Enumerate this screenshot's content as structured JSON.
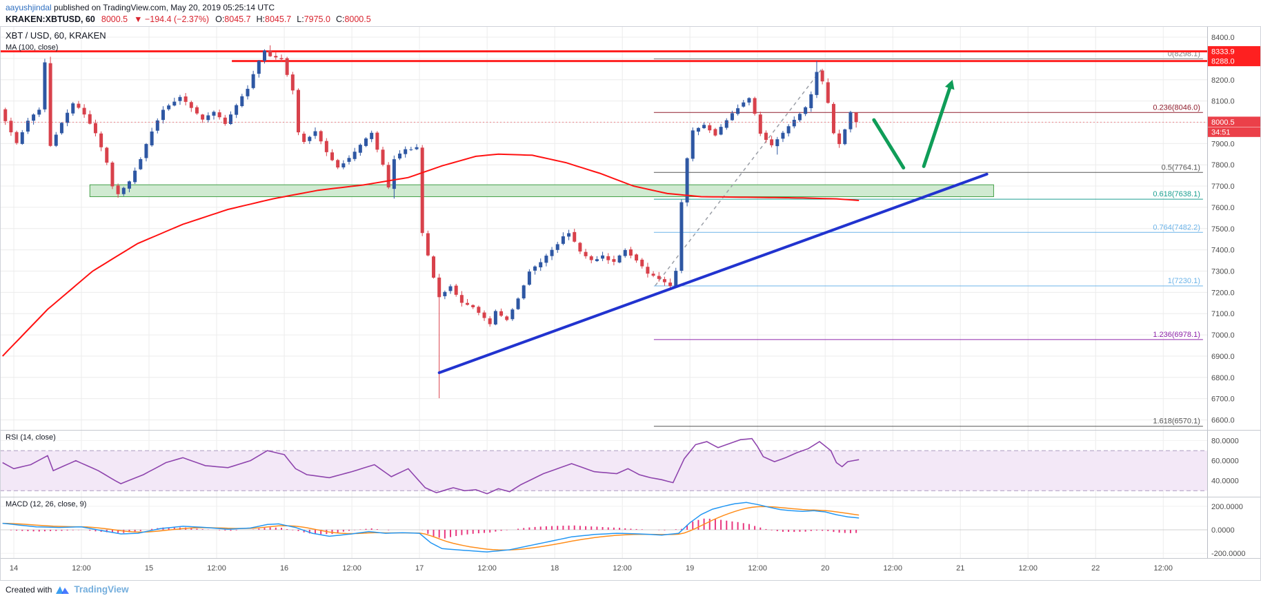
{
  "header": {
    "author": "aayushjindal",
    "published": " published on TradingView.com, May 20, 2019 05:25:14 UTC",
    "symbol": "KRAKEN:XBTUSD, 60",
    "last_price": "8000.5",
    "change": "▼ −194.4 (−2.37%)",
    "ohlc": [
      [
        "O:",
        "8045.7"
      ],
      [
        "H:",
        "8045.7"
      ],
      [
        "L:",
        "7975.0"
      ],
      [
        "C:",
        "8000.5"
      ]
    ]
  },
  "footer": {
    "created_with": "Created with",
    "brand": "TradingView"
  },
  "chart_data": {
    "type": "candlestick",
    "title": "XBT / USD, 60, KRAKEN",
    "overlays": {
      "ma_label": "MA (100, close)"
    },
    "x_axis": {
      "note": "t = hours since May 14 2019 00:00 UTC",
      "start_t": -2.45,
      "end_t": 211.8,
      "labels": [
        {
          "t": 0,
          "label": "14"
        },
        {
          "t": 12,
          "label": "12:00"
        },
        {
          "t": 24,
          "label": "15"
        },
        {
          "t": 36,
          "label": "12:00"
        },
        {
          "t": 48,
          "label": "16"
        },
        {
          "t": 60,
          "label": "12:00"
        },
        {
          "t": 72,
          "label": "17"
        },
        {
          "t": 84,
          "label": "12:00"
        },
        {
          "t": 96,
          "label": "18"
        },
        {
          "t": 108,
          "label": "12:00"
        },
        {
          "t": 120,
          "label": "19"
        },
        {
          "t": 132,
          "label": "12:00"
        },
        {
          "t": 144,
          "label": "20"
        },
        {
          "t": 156,
          "label": "12:00"
        },
        {
          "t": 168,
          "label": "21"
        },
        {
          "t": 180,
          "label": "12:00"
        },
        {
          "t": 192,
          "label": "22"
        },
        {
          "t": 204,
          "label": "12:00"
        }
      ]
    },
    "y_axis": {
      "min_price": 6553,
      "max_price": 8452,
      "tick_min": 6600,
      "tick_max": 8400,
      "tick_step": 100,
      "decimals": 1,
      "hidden_ticks": [
        8300,
        8000
      ]
    },
    "candle_colors": {
      "up": "#2e57a3",
      "down": "#d8414b"
    },
    "price_path": [
      [
        -2,
        8060
      ],
      [
        0,
        7950
      ],
      [
        1,
        7900
      ],
      [
        3,
        8010
      ],
      [
        5,
        8060
      ],
      [
        6,
        8280
      ],
      [
        7,
        7890
      ],
      [
        9,
        8000
      ],
      [
        11,
        8090
      ],
      [
        13,
        8040
      ],
      [
        15,
        7950
      ],
      [
        17,
        7810
      ],
      [
        18,
        7700
      ],
      [
        19,
        7660
      ],
      [
        21,
        7720
      ],
      [
        23,
        7830
      ],
      [
        25,
        7960
      ],
      [
        27,
        8060
      ],
      [
        30,
        8120
      ],
      [
        32,
        8070
      ],
      [
        34,
        8010
      ],
      [
        36,
        8050
      ],
      [
        38,
        7990
      ],
      [
        40,
        8080
      ],
      [
        42,
        8160
      ],
      [
        44,
        8290
      ],
      [
        45,
        8340
      ],
      [
        46,
        8310
      ],
      [
        48,
        8300
      ],
      [
        50,
        8150
      ],
      [
        51,
        7950
      ],
      [
        52,
        7910
      ],
      [
        54,
        7960
      ],
      [
        56,
        7860
      ],
      [
        58,
        7790
      ],
      [
        60,
        7830
      ],
      [
        62,
        7890
      ],
      [
        64,
        7950
      ],
      [
        66,
        7800
      ],
      [
        67,
        7690
      ],
      [
        68,
        7830
      ],
      [
        70,
        7870
      ],
      [
        72,
        7880
      ],
      [
        73,
        7480
      ],
      [
        74,
        7370
      ],
      [
        75,
        7270
      ],
      [
        76,
        7180
      ],
      [
        78,
        7230
      ],
      [
        80,
        7150
      ],
      [
        82,
        7130
      ],
      [
        84,
        7080
      ],
      [
        85,
        7050
      ],
      [
        86,
        7110
      ],
      [
        88,
        7070
      ],
      [
        90,
        7170
      ],
      [
        92,
        7300
      ],
      [
        94,
        7340
      ],
      [
        96,
        7400
      ],
      [
        98,
        7460
      ],
      [
        99,
        7480
      ],
      [
        101,
        7390
      ],
      [
        103,
        7350
      ],
      [
        105,
        7370
      ],
      [
        107,
        7340
      ],
      [
        109,
        7400
      ],
      [
        111,
        7350
      ],
      [
        113,
        7290
      ],
      [
        115,
        7260
      ],
      [
        117,
        7230
      ],
      [
        118,
        7300
      ],
      [
        119,
        7620
      ],
      [
        120,
        7830
      ],
      [
        121,
        7960
      ],
      [
        123,
        7990
      ],
      [
        125,
        7940
      ],
      [
        127,
        8010
      ],
      [
        129,
        8070
      ],
      [
        131,
        8110
      ],
      [
        132,
        8040
      ],
      [
        133,
        7950
      ],
      [
        135,
        7890
      ],
      [
        137,
        7950
      ],
      [
        139,
        8010
      ],
      [
        141,
        8070
      ],
      [
        142,
        8130
      ],
      [
        143,
        8240
      ],
      [
        144,
        8190
      ],
      [
        145,
        8090
      ],
      [
        146,
        7950
      ],
      [
        147,
        7900
      ],
      [
        148,
        7970
      ],
      [
        149,
        8046
      ],
      [
        150,
        8000.5
      ]
    ],
    "wick_overrides": [
      [
        6,
        8308,
        null
      ],
      [
        45,
        8362,
        null
      ],
      [
        51,
        null,
        7898
      ],
      [
        67,
        null,
        7641
      ],
      [
        75,
        null,
        6702
      ],
      [
        135,
        null,
        7848
      ],
      [
        142,
        8288,
        null
      ],
      [
        149,
        8045.7,
        7975.0
      ]
    ],
    "ma100": {
      "color": "#ff1111",
      "path": [
        [
          -2,
          6900
        ],
        [
          6,
          7120
        ],
        [
          14,
          7300
        ],
        [
          22,
          7430
        ],
        [
          30,
          7520
        ],
        [
          38,
          7590
        ],
        [
          46,
          7640
        ],
        [
          54,
          7680
        ],
        [
          62,
          7705
        ],
        [
          70,
          7740
        ],
        [
          76,
          7795
        ],
        [
          82,
          7840
        ],
        [
          86,
          7850
        ],
        [
          92,
          7845
        ],
        [
          98,
          7810
        ],
        [
          104,
          7760
        ],
        [
          110,
          7700
        ],
        [
          116,
          7665
        ],
        [
          122,
          7650
        ],
        [
          128,
          7648
        ],
        [
          134,
          7646
        ],
        [
          140,
          7644
        ],
        [
          146,
          7640
        ],
        [
          150,
          7632
        ]
      ]
    },
    "fib": {
      "start_t": 113.6,
      "end_t": 211.05,
      "levels": [
        {
          "label": "0(8298.1)",
          "price": 8298.1,
          "color": "#808080"
        },
        {
          "label": "0.236(8046.0)",
          "price": 8046.0,
          "color": "#8f1d2c"
        },
        {
          "label": "0.5(7764.1)",
          "price": 7764.1,
          "color": "#555555"
        },
        {
          "label": "0.618(7638.1)",
          "price": 7638.1,
          "color": "#1a9e8f"
        },
        {
          "label": "0.764(7482.2)",
          "price": 7482.2,
          "color": "#6bb3e8"
        },
        {
          "label": "1(7230.1)",
          "price": 7230.1,
          "color": "#6bb3e8"
        },
        {
          "label": "1.236(6978.1)",
          "price": 6978.1,
          "color": "#8e24aa"
        },
        {
          "label": "1.618(6570.1)",
          "price": 6570.1,
          "color": "#555555"
        }
      ]
    },
    "red_lines": [
      {
        "price": 8333.9,
        "t1": -2.45,
        "t2": 211.8,
        "label": "8333.9"
      },
      {
        "price": 8288.0,
        "t1": 38.7,
        "t2": 211.8,
        "label": "8288.0"
      }
    ],
    "red_line_color": "#fe2020",
    "green_zone": {
      "t1": 13.5,
      "t2": 173.9,
      "price_top": 7706,
      "price_bottom": 7650,
      "fill": "#c8e6c9",
      "stroke": "#43a047"
    },
    "trendline": {
      "t1": 75.5,
      "price1": 6822,
      "t2": 172.7,
      "price2": 7756,
      "color": "#2133cf",
      "width": 4
    },
    "dashed_line": {
      "t1": 113.85,
      "price1": 7232,
      "t2": 143.5,
      "price2": 8255,
      "color": "#9a9ea6"
    },
    "arrow": {
      "color": "#0f9d58",
      "width": 5,
      "head_size": 13,
      "strokes": [
        {
          "t1": 152.65,
          "price1": 8011,
          "t2": 157.9,
          "price2": 7786
        },
        {
          "t1": 161.5,
          "price1": 7793,
          "t2": 166.1,
          "price2": 8160
        }
      ]
    },
    "last_price_marker": {
      "value": "8000.5",
      "price": 8000.5,
      "countdown": "34:51",
      "badge_color": "#eb4049"
    },
    "rsi": {
      "label": "RSI (14, close)",
      "color": "#8e44ad",
      "range": [
        24,
        90
      ],
      "band": [
        30,
        70
      ],
      "band_fill": "#f3e8f7",
      "band_edge_color": "#ab9ac0",
      "axis_ticks": [
        [
          80,
          "80.0000"
        ],
        [
          60,
          "60.0000"
        ],
        [
          40,
          "40.0000"
        ]
      ],
      "path": [
        [
          -2,
          58
        ],
        [
          0,
          52
        ],
        [
          3,
          56
        ],
        [
          6,
          65
        ],
        [
          7,
          50
        ],
        [
          9,
          55
        ],
        [
          11,
          60
        ],
        [
          15,
          50
        ],
        [
          18,
          40
        ],
        [
          19,
          37
        ],
        [
          23,
          46
        ],
        [
          27,
          58
        ],
        [
          30,
          63
        ],
        [
          34,
          55
        ],
        [
          38,
          53
        ],
        [
          42,
          60
        ],
        [
          45,
          70
        ],
        [
          48,
          66
        ],
        [
          50,
          52
        ],
        [
          52,
          46
        ],
        [
          56,
          43
        ],
        [
          60,
          49
        ],
        [
          64,
          56
        ],
        [
          67,
          44
        ],
        [
          70,
          52
        ],
        [
          73,
          33
        ],
        [
          75,
          28
        ],
        [
          78,
          33
        ],
        [
          80,
          30
        ],
        [
          82,
          31
        ],
        [
          84,
          27
        ],
        [
          86,
          32
        ],
        [
          88,
          29
        ],
        [
          90,
          36
        ],
        [
          94,
          47
        ],
        [
          98,
          55
        ],
        [
          99,
          57
        ],
        [
          103,
          49
        ],
        [
          107,
          47
        ],
        [
          109,
          52
        ],
        [
          111,
          46
        ],
        [
          113,
          43
        ],
        [
          115,
          41
        ],
        [
          117,
          38
        ],
        [
          119,
          62
        ],
        [
          121,
          76
        ],
        [
          123,
          79
        ],
        [
          125,
          73
        ],
        [
          127,
          77
        ],
        [
          129,
          81
        ],
        [
          131,
          82
        ],
        [
          132,
          74
        ],
        [
          133,
          64
        ],
        [
          135,
          59
        ],
        [
          137,
          63
        ],
        [
          139,
          68
        ],
        [
          141,
          72
        ],
        [
          143,
          79
        ],
        [
          145,
          70
        ],
        [
          146,
          58
        ],
        [
          147,
          54
        ],
        [
          148,
          59
        ],
        [
          150,
          61
        ]
      ]
    },
    "macd": {
      "label": "MACD (12, 26, close, 9)",
      "macd_color": "#2196f3",
      "signal_color": "#ff8d1a",
      "hist_color": "#e8377e",
      "range": [
        -240,
        275
      ],
      "signal_alpha": 0.2,
      "axis_ticks": [
        [
          200,
          "200.0000"
        ],
        [
          0,
          "0.0000"
        ],
        [
          -200,
          "-200.0000"
        ]
      ],
      "path": [
        [
          -2,
          55
        ],
        [
          0,
          45
        ],
        [
          4,
          25
        ],
        [
          8,
          20
        ],
        [
          12,
          25
        ],
        [
          16,
          -10
        ],
        [
          19,
          -35
        ],
        [
          22,
          -30
        ],
        [
          26,
          10
        ],
        [
          30,
          30
        ],
        [
          34,
          20
        ],
        [
          38,
          5
        ],
        [
          42,
          15
        ],
        [
          45,
          45
        ],
        [
          47,
          50
        ],
        [
          50,
          20
        ],
        [
          53,
          -30
        ],
        [
          56,
          -55
        ],
        [
          60,
          -35
        ],
        [
          63,
          -15
        ],
        [
          66,
          -30
        ],
        [
          69,
          -25
        ],
        [
          72,
          -30
        ],
        [
          74,
          -110
        ],
        [
          76,
          -160
        ],
        [
          80,
          -175
        ],
        [
          84,
          -188
        ],
        [
          88,
          -170
        ],
        [
          92,
          -130
        ],
        [
          96,
          -90
        ],
        [
          99,
          -60
        ],
        [
          103,
          -40
        ],
        [
          107,
          -30
        ],
        [
          111,
          -35
        ],
        [
          115,
          -45
        ],
        [
          118,
          -30
        ],
        [
          120,
          60
        ],
        [
          122,
          130
        ],
        [
          124,
          175
        ],
        [
          126,
          200
        ],
        [
          128,
          222
        ],
        [
          130,
          232
        ],
        [
          132,
          215
        ],
        [
          134,
          192
        ],
        [
          136,
          172
        ],
        [
          138,
          162
        ],
        [
          140,
          156
        ],
        [
          142,
          162
        ],
        [
          144,
          152
        ],
        [
          146,
          128
        ],
        [
          148,
          110
        ],
        [
          150,
          100
        ]
      ]
    }
  }
}
